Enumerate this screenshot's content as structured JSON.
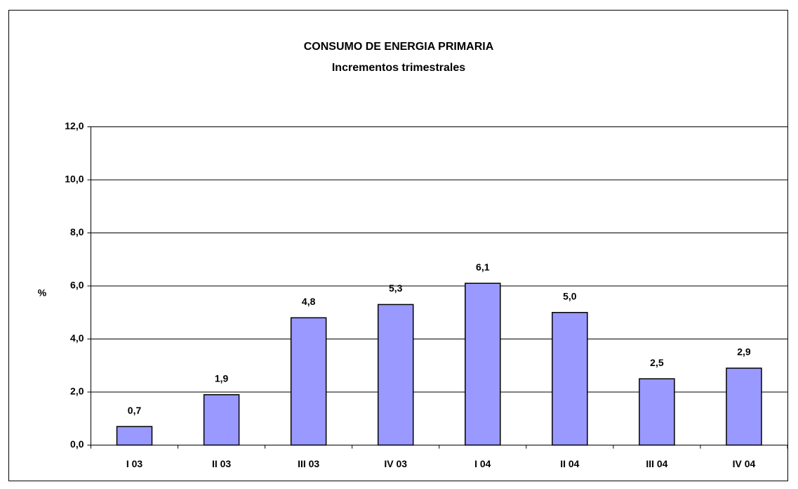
{
  "chart_data": {
    "type": "bar",
    "title": "CONSUMO DE ENERGIA PRIMARIA",
    "subtitle": "Incrementos trimestrales",
    "y_label": "%",
    "categories": [
      "I 03",
      "II 03",
      "III 03",
      "IV 03",
      "I 04",
      "II 04",
      "III 04",
      "IV 04"
    ],
    "values": [
      0.7,
      1.9,
      4.8,
      5.3,
      6.1,
      5.0,
      2.5,
      2.9
    ],
    "value_labels": [
      "0,7",
      "1,9",
      "4,8",
      "5,3",
      "6,1",
      "5,0",
      "2,5",
      "2,9"
    ],
    "color": "#9999ff",
    "ylim": [
      0,
      12
    ],
    "yticks": [
      {
        "value": 0,
        "label": "0,0"
      },
      {
        "value": 2,
        "label": "2,0"
      },
      {
        "value": 4,
        "label": "4,0"
      },
      {
        "value": 6,
        "label": "6,0"
      },
      {
        "value": 8,
        "label": "8,0"
      },
      {
        "value": 10,
        "label": "10,0"
      },
      {
        "value": 12,
        "label": "12,0"
      }
    ],
    "grid": true
  }
}
